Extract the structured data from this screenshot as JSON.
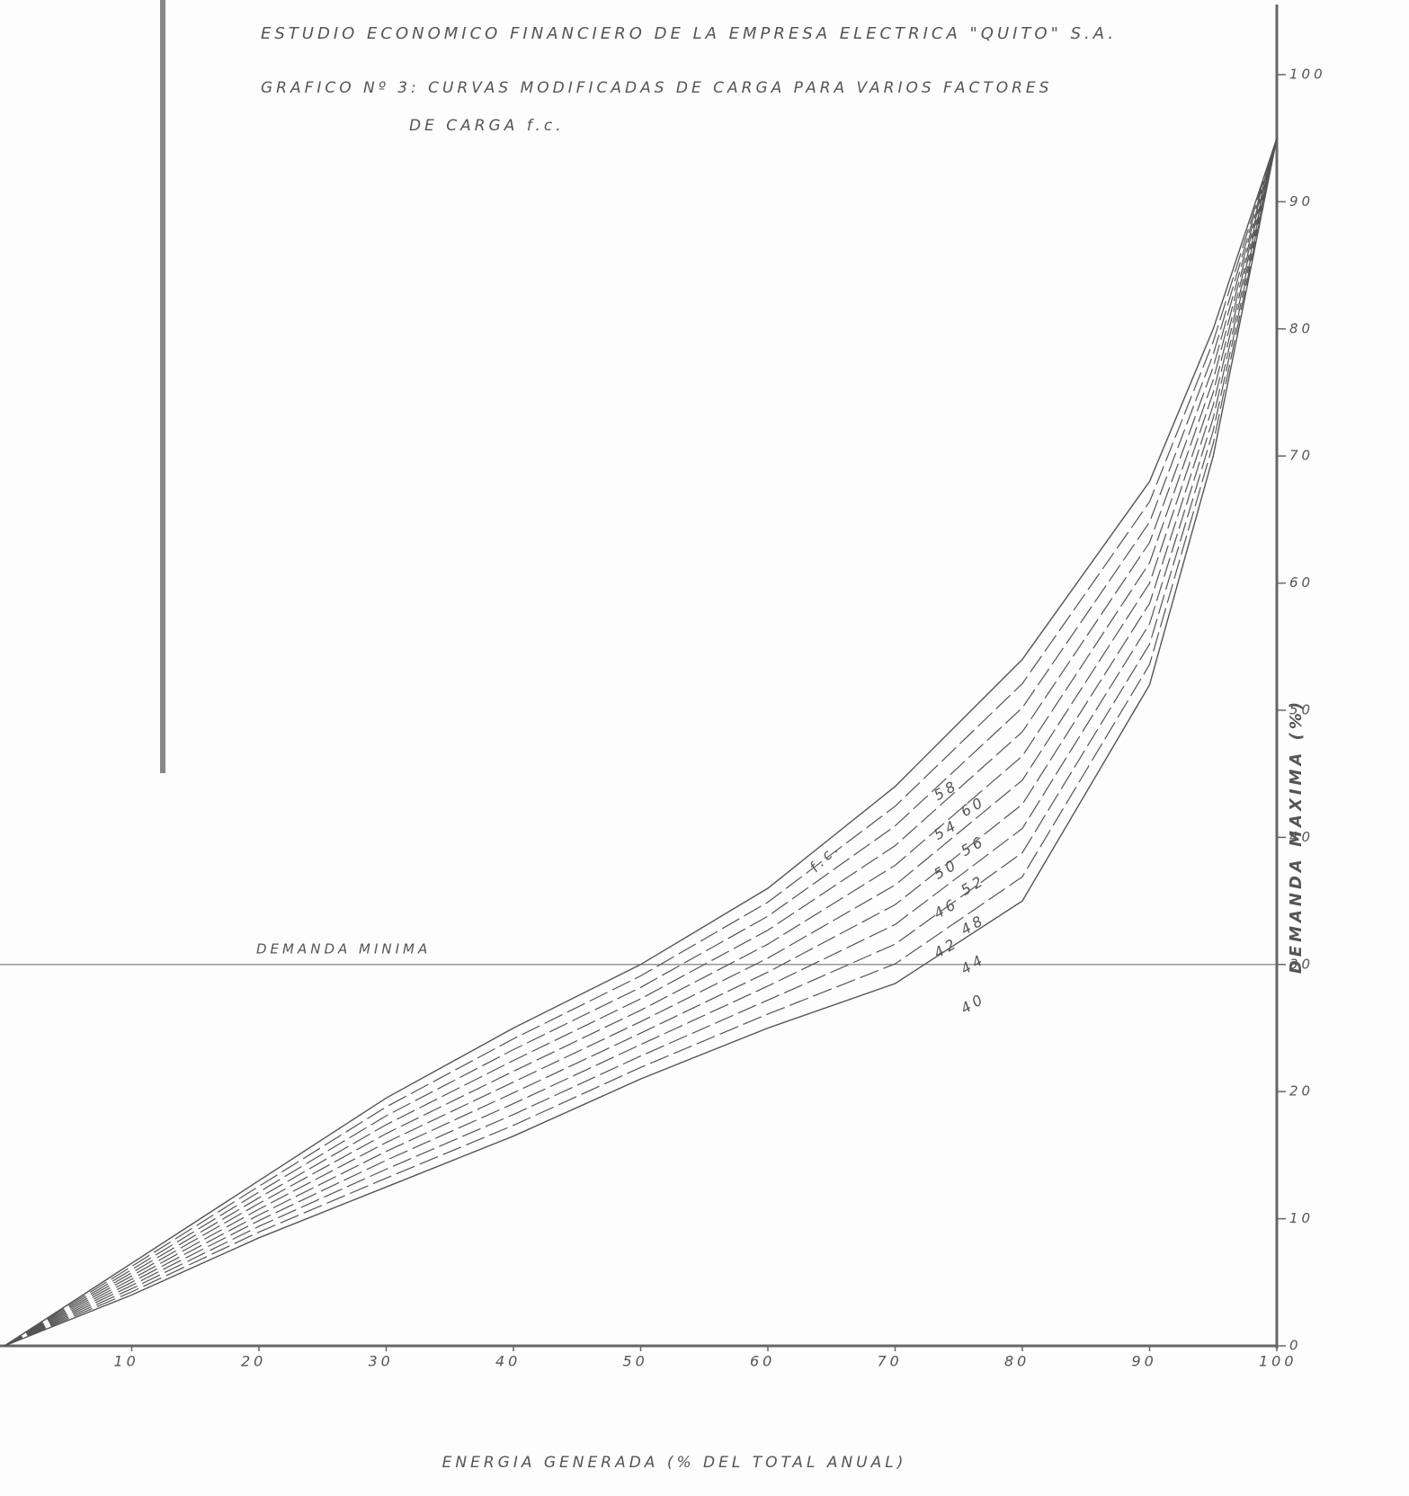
{
  "chart_data": {
    "type": "line",
    "title": "ESTUDIO ECONOMICO FINANCIERO DE LA EMPRESA ELECTRICA \"QUITO\" S.A.",
    "subtitle": [
      "GRAFICO Nº 3: CURVAS MODIFICADAS DE CARGA PARA VARIOS FACTORES",
      "DE CARGA f.c."
    ],
    "x_label": "ENERGIA GENERADA (% DEL TOTAL ANUAL)",
    "y_label": "DEMANDA MAXIMA (%)",
    "series_label_prefix": "f.c.",
    "hline": {
      "value": 30,
      "label": "DEMANDA MINIMA"
    },
    "x": [
      0,
      10,
      20,
      30,
      40,
      50,
      60,
      70,
      80,
      90,
      95,
      100
    ],
    "series": [
      {
        "name": "40",
        "style": "solid",
        "values": [
          0,
          4,
          8.5,
          12.5,
          16.5,
          21,
          25,
          28.5,
          35,
          52,
          70,
          95
        ]
      },
      {
        "name": "42",
        "style": "dashed",
        "values": [
          0,
          4.25,
          8.95,
          13.2,
          17.35,
          21.9,
          26.1,
          30.05,
          36.9,
          53.6,
          71,
          95
        ]
      },
      {
        "name": "44",
        "style": "dashed",
        "values": [
          0,
          4.5,
          9.4,
          13.9,
          18.2,
          22.8,
          27.2,
          31.6,
          38.8,
          55.2,
          72,
          95
        ]
      },
      {
        "name": "46",
        "style": "dashed",
        "values": [
          0,
          4.75,
          9.85,
          14.6,
          19.05,
          23.7,
          28.3,
          33.15,
          40.7,
          56.8,
          73,
          95
        ]
      },
      {
        "name": "48",
        "style": "dashed",
        "values": [
          0,
          5,
          10.3,
          15.3,
          19.9,
          24.6,
          29.4,
          34.7,
          42.6,
          58.4,
          74,
          95
        ]
      },
      {
        "name": "50",
        "style": "dashed",
        "values": [
          0,
          5.25,
          10.75,
          16,
          20.75,
          25.5,
          30.5,
          36.25,
          44.5,
          60,
          75,
          95
        ]
      },
      {
        "name": "52",
        "style": "dashed",
        "values": [
          0,
          5.5,
          11.2,
          16.7,
          21.6,
          26.4,
          31.6,
          37.8,
          46.4,
          61.6,
          76,
          95
        ]
      },
      {
        "name": "54",
        "style": "dashed",
        "values": [
          0,
          5.75,
          11.65,
          17.4,
          22.45,
          27.3,
          32.7,
          39.35,
          48.3,
          63.2,
          77,
          95
        ]
      },
      {
        "name": "56",
        "style": "dashed",
        "values": [
          0,
          6,
          12.1,
          18.1,
          23.3,
          28.2,
          33.8,
          40.9,
          50.2,
          64.8,
          78,
          95
        ]
      },
      {
        "name": "58",
        "style": "dashed",
        "values": [
          0,
          6.25,
          12.55,
          18.8,
          24.15,
          29.1,
          34.9,
          42.45,
          52.1,
          66.4,
          79,
          95
        ]
      },
      {
        "name": "60",
        "style": "solid",
        "values": [
          0,
          6.5,
          13,
          19.5,
          25,
          30,
          36,
          44,
          54,
          68,
          80,
          95
        ]
      }
    ],
    "color": "#555555",
    "xlim": [
      0,
      100
    ],
    "xticks": [
      10,
      20,
      30,
      40,
      50,
      60,
      70,
      80,
      90,
      100
    ],
    "ylim": [
      0,
      100
    ],
    "yticks": [
      0,
      10,
      20,
      30,
      40,
      50,
      60,
      70,
      80,
      90,
      100
    ]
  }
}
